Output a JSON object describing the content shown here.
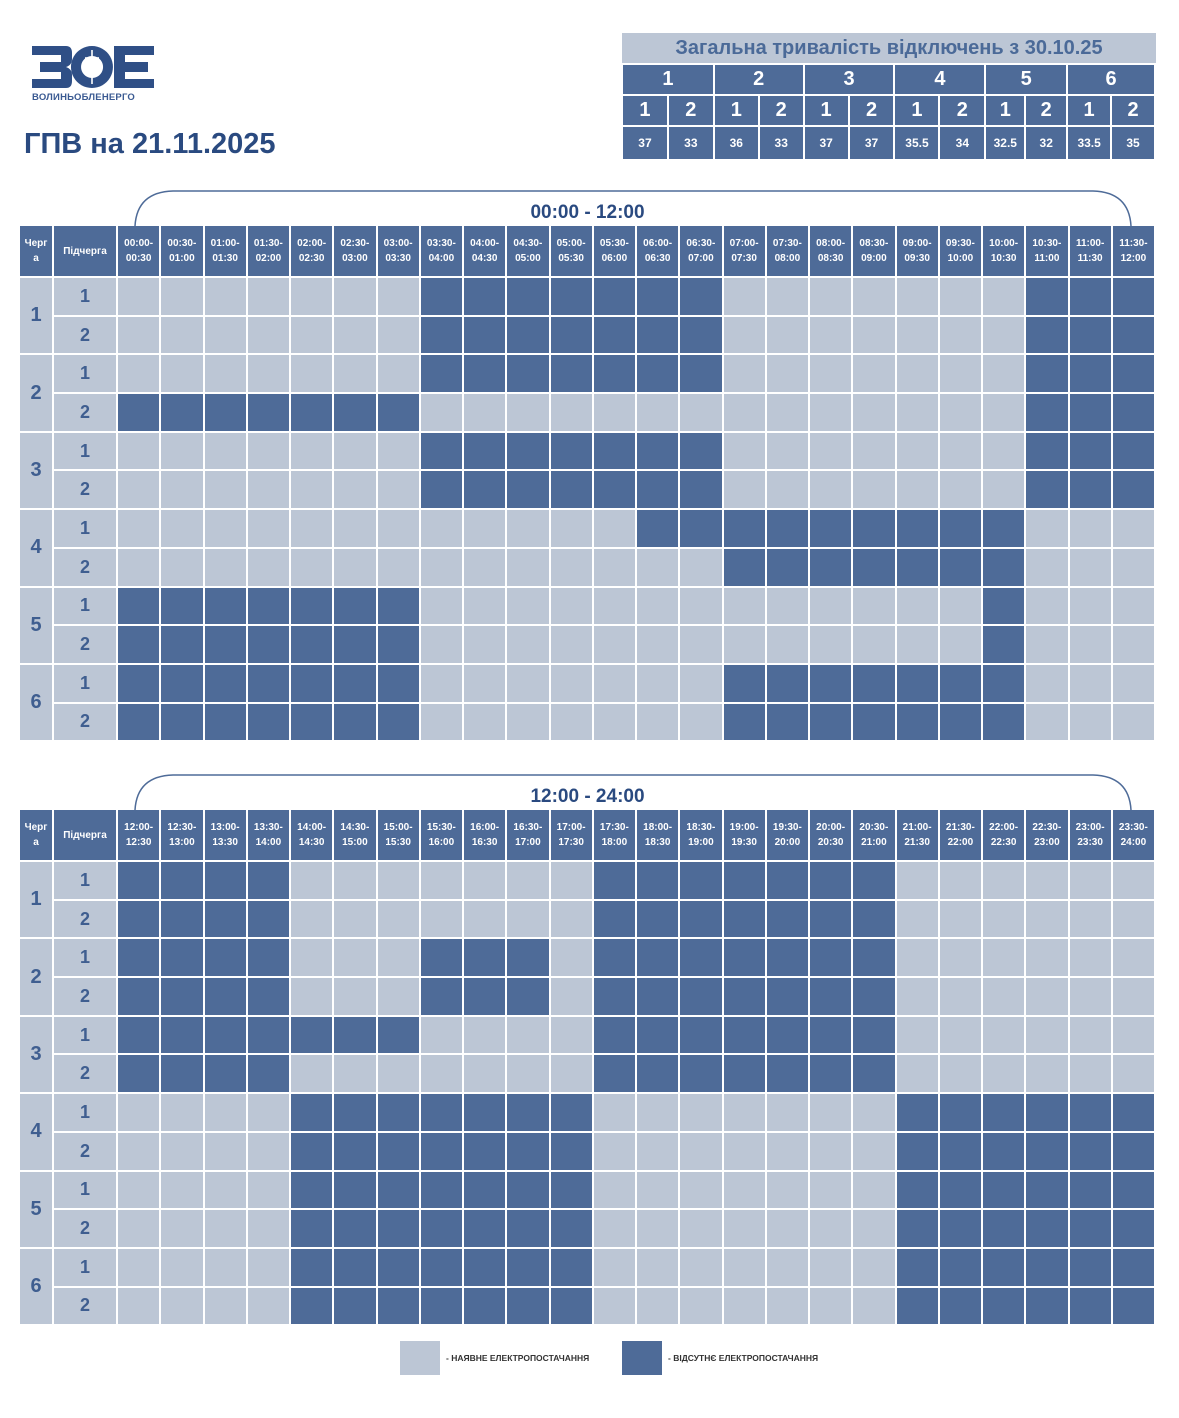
{
  "logo": {
    "text": "ВОЛИНЬОБЛЕНЕРГО",
    "mark": "ЗОЕ"
  },
  "title": "ГПВ на 21.11.2025",
  "summary": {
    "title": "Загальна тривалість відключень з 30.10.25",
    "queues": [
      "1",
      "2",
      "3",
      "4",
      "5",
      "6"
    ],
    "subs": [
      "1",
      "2",
      "1",
      "2",
      "1",
      "2",
      "1",
      "2",
      "1",
      "2",
      "1",
      "2"
    ],
    "values": [
      "37",
      "33",
      "36",
      "33",
      "37",
      "37",
      "35.5",
      "34",
      "32.5",
      "32",
      "33.5",
      "35"
    ]
  },
  "colors": {
    "available": "#bcc6d5",
    "outage": "#4e6b98",
    "text": "#2a4a80"
  },
  "header": {
    "queue": "Черг\nа",
    "subqueue": "Підчерга"
  },
  "sections": [
    {
      "range": "00:00 - 12:00",
      "slots": [
        "00:00-\n00:30",
        "00:30-\n01:00",
        "01:00-\n01:30",
        "01:30-\n02:00",
        "02:00-\n02:30",
        "02:30-\n03:00",
        "03:00-\n03:30",
        "03:30-\n04:00",
        "04:00-\n04:30",
        "04:30-\n05:00",
        "05:00-\n05:30",
        "05:30-\n06:00",
        "06:00-\n06:30",
        "06:30-\n07:00",
        "07:00-\n07:30",
        "07:30-\n08:00",
        "08:00-\n08:30",
        "08:30-\n09:00",
        "09:00-\n09:30",
        "09:30-\n10:00",
        "10:00-\n10:30",
        "10:30-\n11:00",
        "11:00-\n11:30",
        "11:30-\n12:00"
      ],
      "rows": [
        {
          "queue": "1",
          "sub": "1",
          "cells": "000000011111110000000111"
        },
        {
          "queue": "1",
          "sub": "2",
          "cells": "000000011111110000000111"
        },
        {
          "queue": "2",
          "sub": "1",
          "cells": "000000011111110000000111"
        },
        {
          "queue": "2",
          "sub": "2",
          "cells": "111111100000000000000111"
        },
        {
          "queue": "3",
          "sub": "1",
          "cells": "000000011111110000000111"
        },
        {
          "queue": "3",
          "sub": "2",
          "cells": "000000011111110000000111"
        },
        {
          "queue": "4",
          "sub": "1",
          "cells": "000000000000111111111000"
        },
        {
          "queue": "4",
          "sub": "2",
          "cells": "000000000000001111111000"
        },
        {
          "queue": "5",
          "sub": "1",
          "cells": "111111100000000000001000"
        },
        {
          "queue": "5",
          "sub": "2",
          "cells": "111111100000000000001000"
        },
        {
          "queue": "6",
          "sub": "1",
          "cells": "111111100000001111111000"
        },
        {
          "queue": "6",
          "sub": "2",
          "cells": "111111100000001111111000"
        }
      ]
    },
    {
      "range": "12:00 - 24:00",
      "slots": [
        "12:00-\n12:30",
        "12:30-\n13:00",
        "13:00-\n13:30",
        "13:30-\n14:00",
        "14:00-\n14:30",
        "14:30-\n15:00",
        "15:00-\n15:30",
        "15:30-\n16:00",
        "16:00-\n16:30",
        "16:30-\n17:00",
        "17:00-\n17:30",
        "17:30-\n18:00",
        "18:00-\n18:30",
        "18:30-\n19:00",
        "19:00-\n19:30",
        "19:30-\n20:00",
        "20:00-\n20:30",
        "20:30-\n21:00",
        "21:00-\n21:30",
        "21:30-\n22:00",
        "22:00-\n22:30",
        "22:30-\n23:00",
        "23:00-\n23:30",
        "23:30-\n24:00"
      ],
      "rows": [
        {
          "queue": "1",
          "sub": "1",
          "cells": "111100000001111111000000"
        },
        {
          "queue": "1",
          "sub": "2",
          "cells": "111100000001111111000000"
        },
        {
          "queue": "2",
          "sub": "1",
          "cells": "111100011101111111000000"
        },
        {
          "queue": "2",
          "sub": "2",
          "cells": "111100011101111111000000"
        },
        {
          "queue": "3",
          "sub": "1",
          "cells": "111111100001111111000000"
        },
        {
          "queue": "3",
          "sub": "2",
          "cells": "111100000001111111000000"
        },
        {
          "queue": "4",
          "sub": "1",
          "cells": "000011111110000000111111"
        },
        {
          "queue": "4",
          "sub": "2",
          "cells": "000011111110000000111111"
        },
        {
          "queue": "5",
          "sub": "1",
          "cells": "000011111110000000111111"
        },
        {
          "queue": "5",
          "sub": "2",
          "cells": "000011111110000000111111"
        },
        {
          "queue": "6",
          "sub": "1",
          "cells": "000011111110000000111111"
        },
        {
          "queue": "6",
          "sub": "2",
          "cells": "000011111110000000111111"
        }
      ]
    }
  ],
  "legend": {
    "available": "- НАЯВНЕ ЕЛЕКТРОПОСТАЧАННЯ",
    "outage": "- ВІДСУТНЄ ЕЛЕКТРОПОСТАЧАННЯ"
  }
}
